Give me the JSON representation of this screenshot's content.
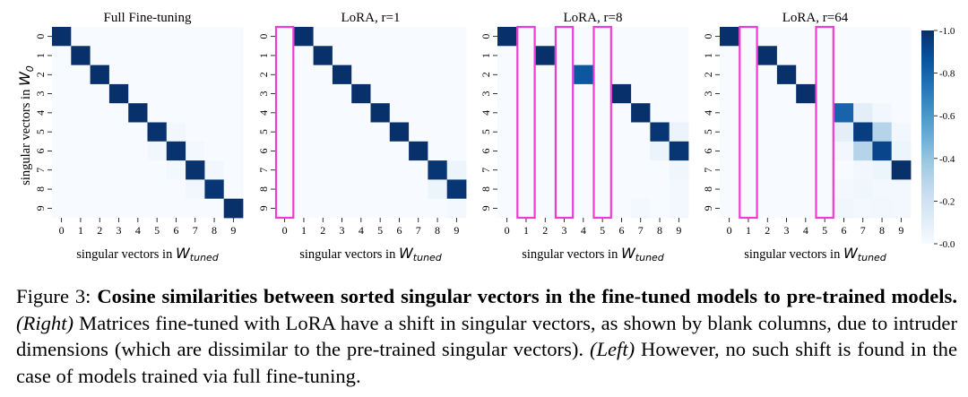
{
  "chart_data": [
    {
      "type": "heatmap",
      "title": "Full Fine-tuning",
      "xlabel_prefix": "singular vectors in ",
      "xlabel_symbol": "W",
      "xlabel_sub": "tuned",
      "ylabel_prefix": "singular vectors in ",
      "ylabel_symbol": "W",
      "ylabel_sub": "0",
      "x_ticks": [
        "0",
        "1",
        "2",
        "3",
        "4",
        "5",
        "6",
        "7",
        "8",
        "9"
      ],
      "y_ticks": [
        "0",
        "1",
        "2",
        "3",
        "4",
        "5",
        "6",
        "7",
        "8",
        "9"
      ],
      "values": [
        [
          1.0,
          0,
          0,
          0,
          0,
          0,
          0,
          0,
          0,
          0
        ],
        [
          0,
          1.0,
          0,
          0,
          0,
          0,
          0,
          0,
          0,
          0
        ],
        [
          0,
          0,
          1.0,
          0,
          0,
          0,
          0,
          0,
          0,
          0
        ],
        [
          0,
          0,
          0,
          1.0,
          0,
          0,
          0,
          0,
          0,
          0
        ],
        [
          0,
          0,
          0,
          0,
          1.0,
          0,
          0,
          0,
          0,
          0
        ],
        [
          0,
          0,
          0,
          0,
          0,
          0.99,
          0.03,
          0,
          0,
          0
        ],
        [
          0,
          0,
          0,
          0,
          0,
          0.03,
          0.99,
          0.02,
          0,
          0
        ],
        [
          0,
          0,
          0,
          0,
          0,
          0,
          0.02,
          0.99,
          0.03,
          0
        ],
        [
          0,
          0,
          0,
          0,
          0,
          0,
          0,
          0.03,
          0.98,
          0
        ],
        [
          0,
          0,
          0,
          0,
          0,
          0,
          0,
          0,
          0,
          1.0
        ]
      ],
      "highlight_columns": []
    },
    {
      "type": "heatmap",
      "title": "LoRA, r=1",
      "xlabel_prefix": "singular vectors in ",
      "xlabel_symbol": "W",
      "xlabel_sub": "tuned",
      "x_ticks": [
        "0",
        "1",
        "2",
        "3",
        "4",
        "5",
        "6",
        "7",
        "8",
        "9"
      ],
      "y_ticks": [
        "0",
        "1",
        "2",
        "3",
        "4",
        "5",
        "6",
        "7",
        "8",
        "9"
      ],
      "values": [
        [
          0,
          1.0,
          0,
          0,
          0,
          0,
          0,
          0,
          0,
          0
        ],
        [
          0,
          0,
          1.0,
          0,
          0,
          0,
          0,
          0,
          0,
          0
        ],
        [
          0,
          0,
          0,
          1.0,
          0,
          0,
          0,
          0,
          0,
          0
        ],
        [
          0,
          0,
          0,
          0,
          1.0,
          0,
          0,
          0,
          0,
          0
        ],
        [
          0,
          0,
          0,
          0,
          0,
          1.0,
          0,
          0,
          0,
          0
        ],
        [
          0,
          0,
          0,
          0,
          0,
          0,
          1.0,
          0,
          0,
          0
        ],
        [
          0,
          0,
          0,
          0,
          0,
          0,
          0,
          1.0,
          0,
          0
        ],
        [
          0,
          0,
          0,
          0,
          0,
          0,
          0,
          0,
          0.98,
          0.05
        ],
        [
          0,
          0,
          0,
          0,
          0,
          0,
          0,
          0,
          0.05,
          0.98
        ],
        [
          0,
          0,
          0,
          0,
          0,
          0,
          0,
          0,
          0,
          0.02
        ]
      ],
      "highlight_columns": [
        0
      ]
    },
    {
      "type": "heatmap",
      "title": "LoRA, r=8",
      "xlabel_prefix": "singular vectors in ",
      "xlabel_symbol": "W",
      "xlabel_sub": "tuned",
      "x_ticks": [
        "0",
        "1",
        "2",
        "3",
        "4",
        "5",
        "6",
        "7",
        "8",
        "9"
      ],
      "y_ticks": [
        "0",
        "1",
        "2",
        "3",
        "4",
        "5",
        "6",
        "7",
        "8",
        "9"
      ],
      "values": [
        [
          1.0,
          0,
          0,
          0,
          0,
          0,
          0,
          0,
          0,
          0
        ],
        [
          0,
          0,
          1.0,
          0,
          0,
          0,
          0,
          0,
          0,
          0
        ],
        [
          0,
          0,
          0,
          0,
          0.85,
          0,
          0,
          0,
          0,
          0
        ],
        [
          0,
          0,
          0,
          0,
          0,
          0,
          1.0,
          0,
          0,
          0
        ],
        [
          0,
          0,
          0,
          0,
          0,
          0,
          0,
          1.0,
          0,
          0
        ],
        [
          0,
          0,
          0,
          0,
          0,
          0,
          0,
          0,
          0.98,
          0.06
        ],
        [
          0,
          0,
          0,
          0,
          0,
          0,
          0,
          0,
          0.06,
          0.98
        ],
        [
          0,
          0,
          0,
          0,
          0,
          0,
          0,
          0,
          0,
          0.04
        ],
        [
          0,
          0,
          0,
          0,
          0,
          0,
          0,
          0,
          0,
          0.02
        ],
        [
          0,
          0,
          0,
          0,
          0,
          0,
          0,
          0.02,
          0,
          0.02
        ]
      ],
      "highlight_columns": [
        1,
        3,
        5
      ]
    },
    {
      "type": "heatmap",
      "title": "LoRA, r=64",
      "xlabel_prefix": "singular vectors in ",
      "xlabel_symbol": "W",
      "xlabel_sub": "tuned",
      "x_ticks": [
        "0",
        "1",
        "2",
        "3",
        "4",
        "5",
        "6",
        "7",
        "8",
        "9"
      ],
      "y_ticks": [
        "0",
        "1",
        "2",
        "3",
        "4",
        "5",
        "6",
        "7",
        "8",
        "9"
      ],
      "values": [
        [
          1.0,
          0,
          0,
          0,
          0,
          0,
          0,
          0,
          0,
          0
        ],
        [
          0,
          0,
          1.0,
          0,
          0,
          0,
          0,
          0,
          0,
          0
        ],
        [
          0,
          0,
          0,
          1.0,
          0,
          0,
          0,
          0,
          0,
          0
        ],
        [
          0,
          0,
          0,
          0,
          1.0,
          0,
          0,
          0,
          0,
          0
        ],
        [
          0,
          0,
          0,
          0,
          0,
          0,
          0.8,
          0.1,
          0.03,
          0
        ],
        [
          0,
          0,
          0,
          0,
          0,
          0,
          0.1,
          0.95,
          0.3,
          0.03
        ],
        [
          0,
          0,
          0,
          0,
          0,
          0,
          0.03,
          0.3,
          0.92,
          0.05
        ],
        [
          0,
          0,
          0,
          0,
          0,
          0,
          0,
          0.03,
          0.05,
          1.0
        ],
        [
          0,
          0,
          0,
          0,
          0,
          0,
          0.02,
          0.04,
          0.02,
          0.02
        ],
        [
          0,
          0,
          0,
          0,
          0,
          0,
          0.04,
          0.02,
          0.03,
          0.02
        ]
      ],
      "highlight_columns": [
        1,
        5
      ]
    }
  ],
  "colorbar": {
    "ticks": [
      1.0,
      0.8,
      0.6,
      0.4,
      0.2,
      0.0
    ],
    "tick_labels": [
      "1.0",
      "0.8",
      "0.6",
      "0.4",
      "0.2",
      "0.0"
    ],
    "range": [
      0,
      1
    ],
    "colormap": "Blues"
  },
  "colors": {
    "highlight": "#ee3bd6",
    "text": "#000000"
  },
  "caption": {
    "label": "Figure 3: ",
    "bold": "Cosine similarities between sorted singular vectors in the fine-tuned models to pre-trained models.",
    "right_tag": "(Right)",
    "right_text": " Matrices fine-tuned with LoRA have a shift in singular vectors, as shown by blank columns, due to intruder dimensions (which are dissimilar to the pre-trained singular vectors). ",
    "left_tag": "(Left)",
    "left_text": " However, no such shift is found in the case of models trained via full fine-tuning."
  }
}
